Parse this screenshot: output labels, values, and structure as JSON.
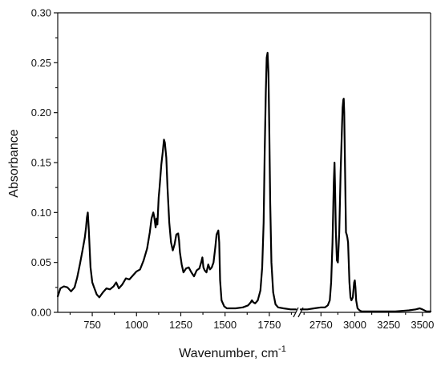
{
  "chart_data": {
    "type": "line",
    "title": "",
    "xlabel": "Wavenumber, cm",
    "xlabel_superscript": "-1",
    "ylabel": "Absorbance",
    "ylim": [
      0,
      0.3
    ],
    "yticks": [
      "0.00",
      "0.05",
      "0.10",
      "0.15",
      "0.20",
      "0.25",
      "0.30"
    ],
    "grid": false,
    "legend": "none",
    "x_axis_break": true,
    "segments": [
      {
        "xlim": [
          555,
          1900
        ],
        "xticks": [
          750,
          1000,
          1250,
          1500,
          1750
        ],
        "x": [
          555,
          570,
          590,
          610,
          630,
          650,
          665,
          680,
          695,
          708,
          715,
          720,
          725,
          730,
          740,
          750,
          760,
          775,
          790,
          810,
          830,
          850,
          870,
          885,
          900,
          920,
          940,
          960,
          980,
          1000,
          1020,
          1040,
          1060,
          1075,
          1085,
          1095,
          1100,
          1108,
          1113,
          1118,
          1125,
          1130,
          1140,
          1148,
          1155,
          1160,
          1168,
          1175,
          1185,
          1195,
          1205,
          1215,
          1225,
          1235,
          1240,
          1245,
          1255,
          1265,
          1280,
          1295,
          1310,
          1325,
          1340,
          1355,
          1365,
          1372,
          1378,
          1385,
          1395,
          1405,
          1415,
          1425,
          1435,
          1445,
          1452,
          1457,
          1462,
          1467,
          1472,
          1480,
          1495,
          1510,
          1530,
          1560,
          1600,
          1630,
          1645,
          1652,
          1660,
          1670,
          1685,
          1700,
          1710,
          1718,
          1724,
          1730,
          1735,
          1740,
          1745,
          1750,
          1755,
          1762,
          1772,
          1785,
          1800,
          1830,
          1870,
          1900
        ],
        "y": [
          0.016,
          0.024,
          0.026,
          0.025,
          0.021,
          0.025,
          0.035,
          0.048,
          0.062,
          0.075,
          0.085,
          0.095,
          0.1,
          0.085,
          0.045,
          0.03,
          0.025,
          0.018,
          0.015,
          0.02,
          0.024,
          0.023,
          0.026,
          0.03,
          0.024,
          0.028,
          0.034,
          0.033,
          0.037,
          0.041,
          0.043,
          0.052,
          0.064,
          0.08,
          0.094,
          0.1,
          0.096,
          0.085,
          0.094,
          0.088,
          0.115,
          0.125,
          0.148,
          0.16,
          0.173,
          0.17,
          0.155,
          0.125,
          0.09,
          0.07,
          0.062,
          0.068,
          0.078,
          0.079,
          0.072,
          0.06,
          0.048,
          0.04,
          0.044,
          0.045,
          0.04,
          0.036,
          0.042,
          0.044,
          0.05,
          0.055,
          0.045,
          0.042,
          0.04,
          0.048,
          0.043,
          0.045,
          0.05,
          0.065,
          0.078,
          0.08,
          0.082,
          0.07,
          0.032,
          0.012,
          0.006,
          0.004,
          0.004,
          0.004,
          0.005,
          0.007,
          0.01,
          0.012,
          0.01,
          0.009,
          0.012,
          0.022,
          0.045,
          0.09,
          0.16,
          0.22,
          0.255,
          0.26,
          0.24,
          0.18,
          0.11,
          0.05,
          0.02,
          0.008,
          0.005,
          0.004,
          0.003,
          0.003
        ]
      },
      {
        "xlim": [
          2600,
          3560
        ],
        "xticks": [
          2750,
          3000,
          3250,
          3500
        ],
        "x": [
          2600,
          2650,
          2700,
          2750,
          2780,
          2800,
          2815,
          2825,
          2835,
          2845,
          2850,
          2855,
          2860,
          2868,
          2875,
          2885,
          2895,
          2905,
          2910,
          2915,
          2918,
          2922,
          2928,
          2935,
          2940,
          2945,
          2950,
          2960,
          2968,
          2975,
          2985,
          2995,
          3000,
          3005,
          3010,
          3020,
          3035,
          3050,
          3100,
          3200,
          3300,
          3400,
          3450,
          3480,
          3500,
          3530,
          3560
        ],
        "y": [
          0.003,
          0.003,
          0.004,
          0.005,
          0.005,
          0.007,
          0.012,
          0.03,
          0.07,
          0.13,
          0.15,
          0.12,
          0.08,
          0.052,
          0.05,
          0.08,
          0.14,
          0.185,
          0.205,
          0.213,
          0.214,
          0.2,
          0.14,
          0.08,
          0.078,
          0.075,
          0.07,
          0.03,
          0.015,
          0.012,
          0.015,
          0.03,
          0.032,
          0.025,
          0.012,
          0.004,
          0.002,
          0.001,
          0.001,
          0.001,
          0.001,
          0.002,
          0.003,
          0.004,
          0.003,
          0.001,
          0.001
        ]
      }
    ]
  }
}
